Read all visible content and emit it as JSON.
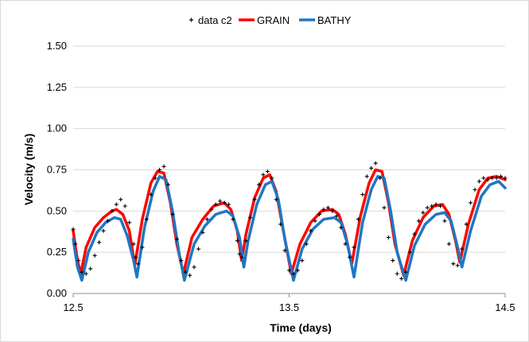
{
  "chart_data": {
    "type": "line",
    "title": "",
    "xlabel": "Time (days)",
    "ylabel": "Velocity (m/s)",
    "xlim": [
      12.5,
      14.5
    ],
    "ylim": [
      0,
      1.5
    ],
    "x_ticks": [
      12.5,
      13.5,
      14.5
    ],
    "x_tick_labels": [
      "12.5",
      "13.5",
      "14.5"
    ],
    "y_ticks": [
      0,
      0.25,
      0.5,
      0.75,
      1.0,
      1.25,
      1.5
    ],
    "y_tick_labels": [
      "0.00",
      "0.25",
      "0.50",
      "0.75",
      "1.00",
      "1.25",
      "1.50"
    ],
    "grid": "horizontal",
    "legend_position": "top",
    "series": [
      {
        "name": "data c2",
        "style": "markers-plus",
        "color": "#000000",
        "points": [
          [
            12.5,
            0.39
          ],
          [
            12.51,
            0.3
          ],
          [
            12.525,
            0.2
          ],
          [
            12.54,
            0.13
          ],
          [
            12.56,
            0.12
          ],
          [
            12.58,
            0.15
          ],
          [
            12.6,
            0.23
          ],
          [
            12.62,
            0.31
          ],
          [
            12.64,
            0.38
          ],
          [
            12.66,
            0.44
          ],
          [
            12.68,
            0.5
          ],
          [
            12.7,
            0.54
          ],
          [
            12.72,
            0.57
          ],
          [
            12.74,
            0.53
          ],
          [
            12.76,
            0.43
          ],
          [
            12.78,
            0.3
          ],
          [
            12.79,
            0.22
          ],
          [
            12.8,
            0.18
          ],
          [
            12.82,
            0.28
          ],
          [
            12.84,
            0.45
          ],
          [
            12.86,
            0.6
          ],
          [
            12.88,
            0.7
          ],
          [
            12.9,
            0.75
          ],
          [
            12.92,
            0.77
          ],
          [
            12.94,
            0.66
          ],
          [
            12.96,
            0.48
          ],
          [
            12.98,
            0.33
          ],
          [
            13.0,
            0.2
          ],
          [
            13.02,
            0.13
          ],
          [
            13.04,
            0.11
          ],
          [
            13.06,
            0.16
          ],
          [
            13.08,
            0.27
          ],
          [
            13.1,
            0.37
          ],
          [
            13.12,
            0.45
          ],
          [
            13.14,
            0.51
          ],
          [
            13.16,
            0.54
          ],
          [
            13.18,
            0.56
          ],
          [
            13.2,
            0.55
          ],
          [
            13.22,
            0.54
          ],
          [
            13.24,
            0.45
          ],
          [
            13.26,
            0.32
          ],
          [
            13.27,
            0.24
          ],
          [
            13.28,
            0.22
          ],
          [
            13.3,
            0.32
          ],
          [
            13.32,
            0.46
          ],
          [
            13.34,
            0.57
          ],
          [
            13.36,
            0.66
          ],
          [
            13.38,
            0.72
          ],
          [
            13.4,
            0.74
          ],
          [
            13.42,
            0.7
          ],
          [
            13.44,
            0.57
          ],
          [
            13.46,
            0.42
          ],
          [
            13.48,
            0.26
          ],
          [
            13.5,
            0.14
          ],
          [
            13.52,
            0.12
          ],
          [
            13.54,
            0.14
          ],
          [
            13.56,
            0.2
          ],
          [
            13.58,
            0.3
          ],
          [
            13.6,
            0.38
          ],
          [
            13.62,
            0.44
          ],
          [
            13.64,
            0.48
          ],
          [
            13.66,
            0.51
          ],
          [
            13.68,
            0.52
          ],
          [
            13.7,
            0.5
          ],
          [
            13.72,
            0.47
          ],
          [
            13.74,
            0.4
          ],
          [
            13.76,
            0.3
          ],
          [
            13.78,
            0.22
          ],
          [
            13.8,
            0.28
          ],
          [
            13.82,
            0.45
          ],
          [
            13.84,
            0.6
          ],
          [
            13.86,
            0.71
          ],
          [
            13.88,
            0.76
          ],
          [
            13.9,
            0.79
          ],
          [
            13.92,
            0.7
          ],
          [
            13.94,
            0.52
          ],
          [
            13.96,
            0.34
          ],
          [
            13.98,
            0.2
          ],
          [
            14.0,
            0.12
          ],
          [
            14.02,
            0.09
          ],
          [
            14.04,
            0.13
          ],
          [
            14.06,
            0.25
          ],
          [
            14.08,
            0.36
          ],
          [
            14.1,
            0.44
          ],
          [
            14.12,
            0.49
          ],
          [
            14.14,
            0.52
          ],
          [
            14.16,
            0.53
          ],
          [
            14.18,
            0.54
          ],
          [
            14.2,
            0.53
          ],
          [
            14.22,
            0.44
          ],
          [
            14.24,
            0.3
          ],
          [
            14.26,
            0.18
          ],
          [
            14.28,
            0.17
          ],
          [
            14.3,
            0.27
          ],
          [
            14.32,
            0.42
          ],
          [
            14.34,
            0.55
          ],
          [
            14.36,
            0.63
          ],
          [
            14.38,
            0.68
          ],
          [
            14.4,
            0.7
          ],
          [
            14.42,
            0.69
          ],
          [
            14.44,
            0.7
          ],
          [
            14.46,
            0.7
          ],
          [
            14.48,
            0.71
          ],
          [
            14.5,
            0.7
          ]
        ]
      },
      {
        "name": "GRAIN",
        "style": "line",
        "color": "#FF0000",
        "points": [
          [
            12.5,
            0.38
          ],
          [
            12.52,
            0.2
          ],
          [
            12.535,
            0.12
          ],
          [
            12.56,
            0.28
          ],
          [
            12.6,
            0.4
          ],
          [
            12.64,
            0.46
          ],
          [
            12.68,
            0.5
          ],
          [
            12.7,
            0.51
          ],
          [
            12.73,
            0.48
          ],
          [
            12.76,
            0.38
          ],
          [
            12.785,
            0.17
          ],
          [
            12.82,
            0.45
          ],
          [
            12.86,
            0.67
          ],
          [
            12.89,
            0.74
          ],
          [
            12.92,
            0.73
          ],
          [
            12.95,
            0.55
          ],
          [
            12.98,
            0.3
          ],
          [
            13.01,
            0.12
          ],
          [
            13.05,
            0.34
          ],
          [
            13.1,
            0.45
          ],
          [
            13.15,
            0.53
          ],
          [
            13.2,
            0.55
          ],
          [
            13.23,
            0.51
          ],
          [
            13.26,
            0.38
          ],
          [
            13.28,
            0.2
          ],
          [
            13.3,
            0.36
          ],
          [
            13.34,
            0.58
          ],
          [
            13.38,
            0.7
          ],
          [
            13.41,
            0.72
          ],
          [
            13.44,
            0.62
          ],
          [
            13.47,
            0.4
          ],
          [
            13.51,
            0.12
          ],
          [
            13.55,
            0.3
          ],
          [
            13.6,
            0.43
          ],
          [
            13.65,
            0.5
          ],
          [
            13.7,
            0.51
          ],
          [
            13.73,
            0.48
          ],
          [
            13.76,
            0.36
          ],
          [
            13.79,
            0.18
          ],
          [
            13.83,
            0.47
          ],
          [
            13.87,
            0.67
          ],
          [
            13.9,
            0.75
          ],
          [
            13.93,
            0.74
          ],
          [
            13.96,
            0.55
          ],
          [
            13.99,
            0.3
          ],
          [
            14.03,
            0.11
          ],
          [
            14.07,
            0.32
          ],
          [
            14.12,
            0.46
          ],
          [
            14.17,
            0.53
          ],
          [
            14.21,
            0.54
          ],
          [
            14.24,
            0.48
          ],
          [
            14.27,
            0.32
          ],
          [
            14.29,
            0.19
          ],
          [
            14.33,
            0.42
          ],
          [
            14.38,
            0.63
          ],
          [
            14.42,
            0.7
          ],
          [
            14.46,
            0.71
          ],
          [
            14.5,
            0.69
          ]
        ]
      },
      {
        "name": "BATHY",
        "style": "line",
        "color": "#1F77C4",
        "points": [
          [
            12.5,
            0.33
          ],
          [
            12.52,
            0.16
          ],
          [
            12.54,
            0.08
          ],
          [
            12.57,
            0.25
          ],
          [
            12.61,
            0.37
          ],
          [
            12.65,
            0.43
          ],
          [
            12.69,
            0.46
          ],
          [
            12.72,
            0.45
          ],
          [
            12.75,
            0.35
          ],
          [
            12.78,
            0.2
          ],
          [
            12.795,
            0.1
          ],
          [
            12.83,
            0.4
          ],
          [
            12.87,
            0.62
          ],
          [
            12.9,
            0.71
          ],
          [
            12.93,
            0.69
          ],
          [
            12.96,
            0.5
          ],
          [
            12.99,
            0.25
          ],
          [
            13.015,
            0.08
          ],
          [
            13.06,
            0.3
          ],
          [
            13.11,
            0.41
          ],
          [
            13.16,
            0.48
          ],
          [
            13.21,
            0.5
          ],
          [
            13.24,
            0.47
          ],
          [
            13.27,
            0.34
          ],
          [
            13.29,
            0.16
          ],
          [
            13.31,
            0.32
          ],
          [
            13.35,
            0.54
          ],
          [
            13.39,
            0.66
          ],
          [
            13.42,
            0.68
          ],
          [
            13.45,
            0.57
          ],
          [
            13.48,
            0.33
          ],
          [
            13.52,
            0.08
          ],
          [
            13.56,
            0.27
          ],
          [
            13.61,
            0.39
          ],
          [
            13.66,
            0.45
          ],
          [
            13.71,
            0.46
          ],
          [
            13.74,
            0.43
          ],
          [
            13.77,
            0.3
          ],
          [
            13.8,
            0.1
          ],
          [
            13.84,
            0.43
          ],
          [
            13.88,
            0.63
          ],
          [
            13.91,
            0.71
          ],
          [
            13.94,
            0.7
          ],
          [
            13.97,
            0.5
          ],
          [
            14.0,
            0.25
          ],
          [
            14.04,
            0.08
          ],
          [
            14.08,
            0.29
          ],
          [
            14.13,
            0.42
          ],
          [
            14.18,
            0.48
          ],
          [
            14.22,
            0.49
          ],
          [
            14.25,
            0.44
          ],
          [
            14.28,
            0.28
          ],
          [
            14.3,
            0.16
          ],
          [
            14.34,
            0.38
          ],
          [
            14.39,
            0.59
          ],
          [
            14.43,
            0.66
          ],
          [
            14.47,
            0.68
          ],
          [
            14.5,
            0.64
          ]
        ]
      }
    ]
  }
}
